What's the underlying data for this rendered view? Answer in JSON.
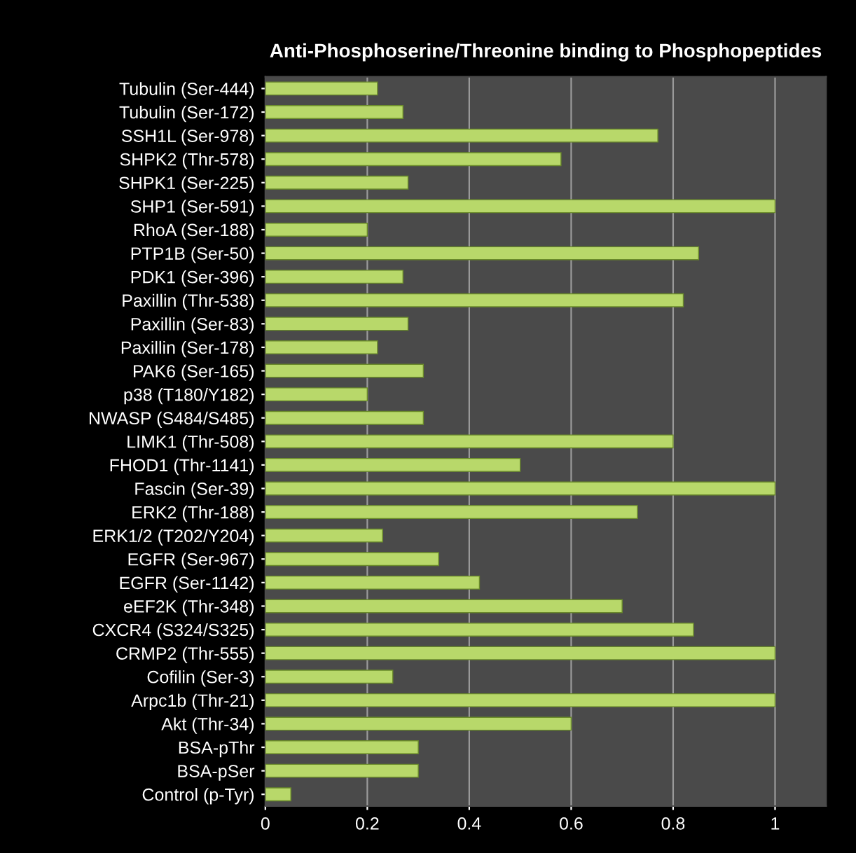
{
  "chart_data": {
    "type": "bar",
    "orientation": "horizontal",
    "title": "Anti-Phosphoserine/Threonine binding to Phosphopeptides",
    "categories": [
      "Tubulin (Ser-444)",
      "Tubulin (Ser-172)",
      "SSH1L (Ser-978)",
      "SHPK2 (Thr-578)",
      "SHPK1 (Ser-225)",
      "SHP1 (Ser-591)",
      "RhoA (Ser-188)",
      "PTP1B (Ser-50)",
      "PDK1 (Ser-396)",
      "Paxillin (Thr-538)",
      "Paxillin (Ser-83)",
      "Paxillin (Ser-178)",
      "PAK6 (Ser-165)",
      "p38 (T180/Y182)",
      "NWASP (S484/S485)",
      "LIMK1 (Thr-508)",
      "FHOD1 (Thr-1141)",
      "Fascin (Ser-39)",
      "ERK2 (Thr-188)",
      "ERK1/2 (T202/Y204)",
      "EGFR (Ser-967)",
      "EGFR (Ser-1142)",
      "eEF2K (Thr-348)",
      "CXCR4 (S324/S325)",
      "CRMP2 (Thr-555)",
      "Cofilin (Ser-3)",
      "Arpc1b (Thr-21)",
      "Akt (Thr-34)",
      "BSA-pThr",
      "BSA-pSer",
      "Control (p-Tyr)"
    ],
    "values": [
      0.22,
      0.27,
      0.77,
      0.58,
      0.28,
      1.0,
      0.2,
      0.85,
      0.27,
      0.82,
      0.28,
      0.22,
      0.31,
      0.2,
      0.31,
      0.8,
      0.5,
      1.0,
      0.73,
      0.23,
      0.34,
      0.42,
      0.7,
      0.84,
      1.0,
      0.25,
      1.0,
      0.6,
      0.3,
      0.3,
      0.05
    ],
    "color": "#b8d86a",
    "xlim": [
      0,
      1.1
    ],
    "xticks": [
      0,
      0.2,
      0.4,
      0.6,
      0.8,
      1
    ],
    "grid": "x"
  }
}
